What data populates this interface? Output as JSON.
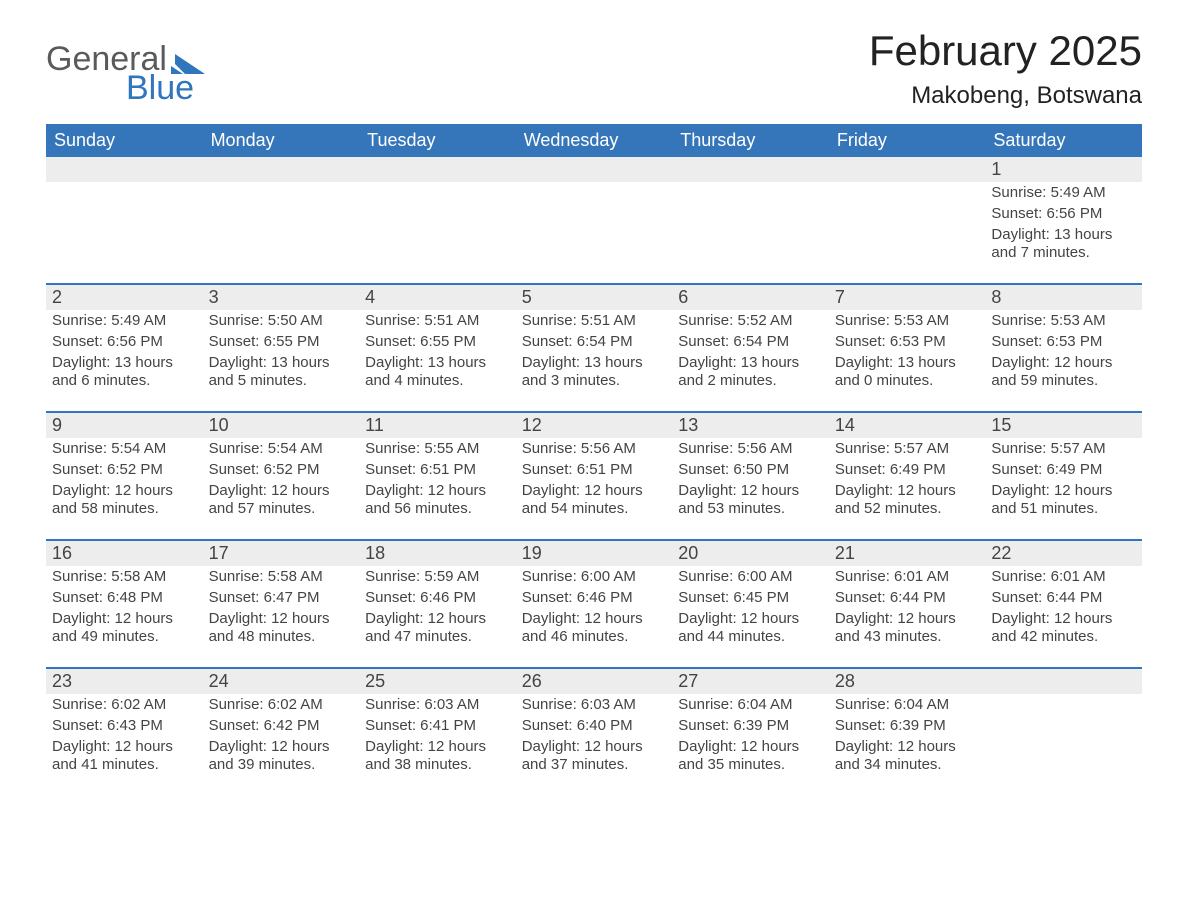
{
  "logo": {
    "general": "General",
    "blue": "Blue"
  },
  "title": "February 2025",
  "location": "Makobeng, Botswana",
  "colors": {
    "header_bg": "#3576bb",
    "header_text": "#ffffff",
    "week_border": "#2f76bd",
    "daynum_bg": "#ededed",
    "text": "#333333",
    "logo_gray": "#5a5a5a",
    "logo_blue": "#2f76bd",
    "background": "#ffffff"
  },
  "typography": {
    "title_fontsize": 42,
    "location_fontsize": 24,
    "dow_fontsize": 18,
    "daynum_fontsize": 18,
    "entry_fontsize": 15
  },
  "days_of_week": [
    "Sunday",
    "Monday",
    "Tuesday",
    "Wednesday",
    "Thursday",
    "Friday",
    "Saturday"
  ],
  "weeks": [
    [
      {
        "empty": true
      },
      {
        "empty": true
      },
      {
        "empty": true
      },
      {
        "empty": true
      },
      {
        "empty": true
      },
      {
        "empty": true
      },
      {
        "day": "1",
        "sunrise": "Sunrise: 5:49 AM",
        "sunset": "Sunset: 6:56 PM",
        "daylight": "Daylight: 13 hours and 7 minutes."
      }
    ],
    [
      {
        "day": "2",
        "sunrise": "Sunrise: 5:49 AM",
        "sunset": "Sunset: 6:56 PM",
        "daylight": "Daylight: 13 hours and 6 minutes."
      },
      {
        "day": "3",
        "sunrise": "Sunrise: 5:50 AM",
        "sunset": "Sunset: 6:55 PM",
        "daylight": "Daylight: 13 hours and 5 minutes."
      },
      {
        "day": "4",
        "sunrise": "Sunrise: 5:51 AM",
        "sunset": "Sunset: 6:55 PM",
        "daylight": "Daylight: 13 hours and 4 minutes."
      },
      {
        "day": "5",
        "sunrise": "Sunrise: 5:51 AM",
        "sunset": "Sunset: 6:54 PM",
        "daylight": "Daylight: 13 hours and 3 minutes."
      },
      {
        "day": "6",
        "sunrise": "Sunrise: 5:52 AM",
        "sunset": "Sunset: 6:54 PM",
        "daylight": "Daylight: 13 hours and 2 minutes."
      },
      {
        "day": "7",
        "sunrise": "Sunrise: 5:53 AM",
        "sunset": "Sunset: 6:53 PM",
        "daylight": "Daylight: 13 hours and 0 minutes."
      },
      {
        "day": "8",
        "sunrise": "Sunrise: 5:53 AM",
        "sunset": "Sunset: 6:53 PM",
        "daylight": "Daylight: 12 hours and 59 minutes."
      }
    ],
    [
      {
        "day": "9",
        "sunrise": "Sunrise: 5:54 AM",
        "sunset": "Sunset: 6:52 PM",
        "daylight": "Daylight: 12 hours and 58 minutes."
      },
      {
        "day": "10",
        "sunrise": "Sunrise: 5:54 AM",
        "sunset": "Sunset: 6:52 PM",
        "daylight": "Daylight: 12 hours and 57 minutes."
      },
      {
        "day": "11",
        "sunrise": "Sunrise: 5:55 AM",
        "sunset": "Sunset: 6:51 PM",
        "daylight": "Daylight: 12 hours and 56 minutes."
      },
      {
        "day": "12",
        "sunrise": "Sunrise: 5:56 AM",
        "sunset": "Sunset: 6:51 PM",
        "daylight": "Daylight: 12 hours and 54 minutes."
      },
      {
        "day": "13",
        "sunrise": "Sunrise: 5:56 AM",
        "sunset": "Sunset: 6:50 PM",
        "daylight": "Daylight: 12 hours and 53 minutes."
      },
      {
        "day": "14",
        "sunrise": "Sunrise: 5:57 AM",
        "sunset": "Sunset: 6:49 PM",
        "daylight": "Daylight: 12 hours and 52 minutes."
      },
      {
        "day": "15",
        "sunrise": "Sunrise: 5:57 AM",
        "sunset": "Sunset: 6:49 PM",
        "daylight": "Daylight: 12 hours and 51 minutes."
      }
    ],
    [
      {
        "day": "16",
        "sunrise": "Sunrise: 5:58 AM",
        "sunset": "Sunset: 6:48 PM",
        "daylight": "Daylight: 12 hours and 49 minutes."
      },
      {
        "day": "17",
        "sunrise": "Sunrise: 5:58 AM",
        "sunset": "Sunset: 6:47 PM",
        "daylight": "Daylight: 12 hours and 48 minutes."
      },
      {
        "day": "18",
        "sunrise": "Sunrise: 5:59 AM",
        "sunset": "Sunset: 6:46 PM",
        "daylight": "Daylight: 12 hours and 47 minutes."
      },
      {
        "day": "19",
        "sunrise": "Sunrise: 6:00 AM",
        "sunset": "Sunset: 6:46 PM",
        "daylight": "Daylight: 12 hours and 46 minutes."
      },
      {
        "day": "20",
        "sunrise": "Sunrise: 6:00 AM",
        "sunset": "Sunset: 6:45 PM",
        "daylight": "Daylight: 12 hours and 44 minutes."
      },
      {
        "day": "21",
        "sunrise": "Sunrise: 6:01 AM",
        "sunset": "Sunset: 6:44 PM",
        "daylight": "Daylight: 12 hours and 43 minutes."
      },
      {
        "day": "22",
        "sunrise": "Sunrise: 6:01 AM",
        "sunset": "Sunset: 6:44 PM",
        "daylight": "Daylight: 12 hours and 42 minutes."
      }
    ],
    [
      {
        "day": "23",
        "sunrise": "Sunrise: 6:02 AM",
        "sunset": "Sunset: 6:43 PM",
        "daylight": "Daylight: 12 hours and 41 minutes."
      },
      {
        "day": "24",
        "sunrise": "Sunrise: 6:02 AM",
        "sunset": "Sunset: 6:42 PM",
        "daylight": "Daylight: 12 hours and 39 minutes."
      },
      {
        "day": "25",
        "sunrise": "Sunrise: 6:03 AM",
        "sunset": "Sunset: 6:41 PM",
        "daylight": "Daylight: 12 hours and 38 minutes."
      },
      {
        "day": "26",
        "sunrise": "Sunrise: 6:03 AM",
        "sunset": "Sunset: 6:40 PM",
        "daylight": "Daylight: 12 hours and 37 minutes."
      },
      {
        "day": "27",
        "sunrise": "Sunrise: 6:04 AM",
        "sunset": "Sunset: 6:39 PM",
        "daylight": "Daylight: 12 hours and 35 minutes."
      },
      {
        "day": "28",
        "sunrise": "Sunrise: 6:04 AM",
        "sunset": "Sunset: 6:39 PM",
        "daylight": "Daylight: 12 hours and 34 minutes."
      },
      {
        "empty": true
      }
    ]
  ]
}
